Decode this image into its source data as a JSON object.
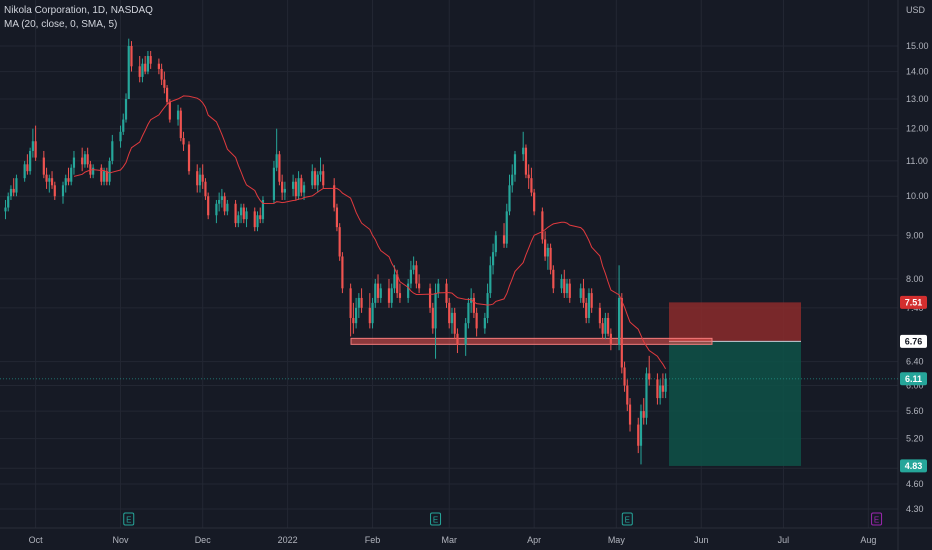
{
  "legend": {
    "title": "Nikola Corporation, 1D, NASDAQ",
    "indicator": "MA (20, close, 0, SMA, 5)"
  },
  "currency": "USD",
  "colors": {
    "background": "#161a25",
    "up": "#26a69a",
    "down": "#ef5350",
    "ma": "#e03a3e",
    "grid": "#232733",
    "stop_zone": "#8b2b2b",
    "target_zone": "#0e5248",
    "earnings": "#26a69a",
    "earnings_future": "#9c27b0"
  },
  "chart_data": {
    "type": "candlestick",
    "y_axis": {
      "scale": "log",
      "ticks": [
        "15.00",
        "14.00",
        "13.00",
        "12.00",
        "11.00",
        "10.00",
        "9.00",
        "8.00",
        "7.40",
        "6.40",
        "6.00",
        "5.60",
        "5.20",
        "4.80",
        "4.60",
        "4.30"
      ]
    },
    "x_axis": {
      "start": "2021-09-18",
      "end": "2022-08-10",
      "ticks": [
        {
          "label": "Oct",
          "date": "2021-10-01"
        },
        {
          "label": "Nov",
          "date": "2021-11-01"
        },
        {
          "label": "Dec",
          "date": "2021-12-01"
        },
        {
          "label": "2022",
          "date": "2022-01-01"
        },
        {
          "label": "Feb",
          "date": "2022-02-01"
        },
        {
          "label": "Mar",
          "date": "2022-03-01"
        },
        {
          "label": "Apr",
          "date": "2022-04-01"
        },
        {
          "label": "May",
          "date": "2022-05-01"
        },
        {
          "label": "Jun",
          "date": "2022-06-01"
        },
        {
          "label": "Jul",
          "date": "2022-07-01"
        },
        {
          "label": "Aug",
          "date": "2022-08-01"
        }
      ]
    },
    "candles": [
      [
        "2021-09-20",
        9.6,
        9.9,
        9.4,
        9.7
      ],
      [
        "2021-09-21",
        9.7,
        10.1,
        9.6,
        10.0
      ],
      [
        "2021-09-22",
        10.0,
        10.3,
        9.9,
        10.2
      ],
      [
        "2021-09-23",
        10.2,
        10.5,
        10.0,
        10.1
      ],
      [
        "2021-09-24",
        10.1,
        10.6,
        10.0,
        10.5
      ],
      [
        "2021-09-27",
        10.5,
        11.0,
        10.4,
        10.9
      ],
      [
        "2021-09-28",
        10.9,
        11.2,
        10.6,
        10.7
      ],
      [
        "2021-09-29",
        10.7,
        11.4,
        10.6,
        11.3
      ],
      [
        "2021-09-30",
        11.3,
        12.0,
        11.1,
        11.6
      ],
      [
        "2021-10-01",
        11.6,
        12.1,
        11.0,
        11.1
      ],
      [
        "2021-10-04",
        11.1,
        11.3,
        10.5,
        10.6
      ],
      [
        "2021-10-05",
        10.6,
        10.8,
        10.2,
        10.4
      ],
      [
        "2021-10-06",
        10.4,
        10.6,
        10.1,
        10.5
      ],
      [
        "2021-10-07",
        10.5,
        10.7,
        10.2,
        10.3
      ],
      [
        "2021-10-08",
        10.3,
        10.4,
        9.9,
        10.0
      ],
      [
        "2021-10-11",
        10.0,
        10.4,
        9.8,
        10.3
      ],
      [
        "2021-10-12",
        10.3,
        10.6,
        10.1,
        10.5
      ],
      [
        "2021-10-13",
        10.5,
        10.8,
        10.3,
        10.4
      ],
      [
        "2021-10-14",
        10.4,
        10.9,
        10.3,
        10.8
      ],
      [
        "2021-10-15",
        10.8,
        11.3,
        10.6,
        11.1
      ],
      [
        "2021-10-18",
        11.1,
        11.4,
        10.7,
        10.9
      ],
      [
        "2021-10-19",
        10.9,
        11.3,
        10.8,
        11.2
      ],
      [
        "2021-10-20",
        11.2,
        11.4,
        10.8,
        10.9
      ],
      [
        "2021-10-21",
        10.9,
        11.0,
        10.5,
        10.6
      ],
      [
        "2021-10-22",
        10.6,
        10.9,
        10.5,
        10.8
      ],
      [
        "2021-10-25",
        10.8,
        10.9,
        10.3,
        10.4
      ],
      [
        "2021-10-26",
        10.4,
        10.8,
        10.3,
        10.7
      ],
      [
        "2021-10-27",
        10.7,
        10.8,
        10.3,
        10.4
      ],
      [
        "2021-10-28",
        10.4,
        11.1,
        10.3,
        11.0
      ],
      [
        "2021-10-29",
        11.0,
        11.8,
        10.9,
        11.6
      ],
      [
        "2021-11-01",
        11.6,
        12.1,
        11.4,
        11.9
      ],
      [
        "2021-11-02",
        11.9,
        12.5,
        11.8,
        12.3
      ],
      [
        "2021-11-03",
        12.3,
        13.2,
        12.2,
        13.0
      ],
      [
        "2021-11-04",
        13.0,
        15.3,
        13.0,
        15.0
      ],
      [
        "2021-11-05",
        15.0,
        15.2,
        14.0,
        14.2
      ],
      [
        "2021-11-08",
        14.2,
        14.6,
        13.6,
        13.8
      ],
      [
        "2021-11-09",
        13.8,
        14.5,
        13.6,
        14.3
      ],
      [
        "2021-11-10",
        14.3,
        14.6,
        13.9,
        14.0
      ],
      [
        "2021-11-11",
        14.0,
        14.8,
        13.9,
        14.6
      ],
      [
        "2021-11-12",
        14.6,
        14.8,
        14.1,
        14.3
      ],
      [
        "2021-11-15",
        14.3,
        14.5,
        13.9,
        14.1
      ],
      [
        "2021-11-16",
        14.1,
        14.3,
        13.5,
        13.7
      ],
      [
        "2021-11-17",
        13.7,
        14.0,
        13.2,
        13.4
      ],
      [
        "2021-11-18",
        13.4,
        13.5,
        12.8,
        12.9
      ],
      [
        "2021-11-19",
        12.9,
        13.0,
        12.2,
        12.3
      ],
      [
        "2021-11-22",
        12.3,
        12.8,
        12.1,
        12.6
      ],
      [
        "2021-11-23",
        12.6,
        12.7,
        11.6,
        11.7
      ],
      [
        "2021-11-24",
        11.7,
        11.9,
        11.3,
        11.5
      ],
      [
        "2021-11-26",
        11.5,
        11.6,
        10.6,
        10.7
      ],
      [
        "2021-11-29",
        10.7,
        10.9,
        10.1,
        10.3
      ],
      [
        "2021-11-30",
        10.3,
        10.8,
        10.1,
        10.6
      ],
      [
        "2021-12-01",
        10.6,
        10.9,
        10.2,
        10.4
      ],
      [
        "2021-12-02",
        10.4,
        10.5,
        9.9,
        10.0
      ],
      [
        "2021-12-03",
        10.0,
        10.1,
        9.4,
        9.5
      ],
      [
        "2021-12-06",
        9.5,
        9.9,
        9.3,
        9.8
      ],
      [
        "2021-12-07",
        9.8,
        10.1,
        9.6,
        9.9
      ],
      [
        "2021-12-08",
        9.9,
        10.2,
        9.7,
        10.0
      ],
      [
        "2021-12-09",
        10.0,
        10.1,
        9.5,
        9.6
      ],
      [
        "2021-12-10",
        9.6,
        9.9,
        9.5,
        9.8
      ],
      [
        "2021-12-13",
        9.8,
        9.9,
        9.2,
        9.3
      ],
      [
        "2021-12-14",
        9.3,
        9.6,
        9.2,
        9.5
      ],
      [
        "2021-12-15",
        9.5,
        9.8,
        9.3,
        9.7
      ],
      [
        "2021-12-16",
        9.7,
        9.8,
        9.3,
        9.4
      ],
      [
        "2021-12-17",
        9.4,
        9.7,
        9.2,
        9.6
      ],
      [
        "2021-12-20",
        9.6,
        9.7,
        9.1,
        9.2
      ],
      [
        "2021-12-21",
        9.2,
        9.6,
        9.1,
        9.5
      ],
      [
        "2021-12-22",
        9.5,
        9.7,
        9.3,
        9.4
      ],
      [
        "2021-12-23",
        9.4,
        10.0,
        9.3,
        9.9
      ],
      [
        "2021-12-27",
        9.9,
        11.0,
        9.8,
        10.8
      ],
      [
        "2021-12-28",
        10.8,
        12.0,
        10.7,
        11.2
      ],
      [
        "2021-12-29",
        11.2,
        11.3,
        10.3,
        10.4
      ],
      [
        "2021-12-30",
        10.4,
        10.6,
        9.9,
        10.1
      ],
      [
        "2021-12-31",
        10.1,
        10.4,
        9.9,
        10.2
      ],
      [
        "2022-01-03",
        10.2,
        10.6,
        10.0,
        10.4
      ],
      [
        "2022-01-04",
        10.4,
        10.5,
        9.9,
        10.0
      ],
      [
        "2022-01-05",
        10.0,
        10.7,
        9.9,
        10.5
      ],
      [
        "2022-01-06",
        10.5,
        10.6,
        10.0,
        10.1
      ],
      [
        "2022-01-07",
        10.1,
        10.4,
        9.9,
        10.3
      ],
      [
        "2022-01-10",
        10.3,
        10.9,
        10.2,
        10.7
      ],
      [
        "2022-01-11",
        10.7,
        10.8,
        10.2,
        10.3
      ],
      [
        "2022-01-12",
        10.3,
        10.7,
        10.1,
        10.6
      ],
      [
        "2022-01-13",
        10.6,
        11.1,
        10.4,
        10.7
      ],
      [
        "2022-01-14",
        10.7,
        10.9,
        10.2,
        10.3
      ],
      [
        "2022-01-18",
        10.3,
        10.5,
        9.6,
        9.7
      ],
      [
        "2022-01-19",
        9.7,
        9.8,
        9.1,
        9.2
      ],
      [
        "2022-01-20",
        9.2,
        9.3,
        8.4,
        8.5
      ],
      [
        "2022-01-21",
        8.5,
        8.6,
        7.7,
        7.8
      ],
      [
        "2022-01-24",
        7.8,
        7.9,
        6.85,
        7.2
      ],
      [
        "2022-01-25",
        7.2,
        7.5,
        6.9,
        7.1
      ],
      [
        "2022-01-26",
        7.1,
        7.6,
        7.0,
        7.4
      ],
      [
        "2022-01-27",
        7.4,
        7.7,
        7.2,
        7.6
      ],
      [
        "2022-01-28",
        7.6,
        7.8,
        7.3,
        7.4
      ],
      [
        "2022-01-31",
        7.4,
        7.7,
        7.0,
        7.1
      ],
      [
        "2022-02-01",
        7.1,
        7.6,
        7.0,
        7.5
      ],
      [
        "2022-02-02",
        7.5,
        8.0,
        7.4,
        7.9
      ],
      [
        "2022-02-03",
        7.9,
        8.1,
        7.5,
        7.6
      ],
      [
        "2022-02-04",
        7.6,
        7.9,
        7.5,
        7.8
      ],
      [
        "2022-02-07",
        7.8,
        8.0,
        7.4,
        7.5
      ],
      [
        "2022-02-08",
        7.5,
        7.9,
        7.4,
        7.8
      ],
      [
        "2022-02-09",
        7.8,
        8.3,
        7.7,
        8.1
      ],
      [
        "2022-02-10",
        8.1,
        8.2,
        7.6,
        7.7
      ],
      [
        "2022-02-11",
        7.7,
        7.9,
        7.5,
        7.6
      ],
      [
        "2022-02-14",
        7.6,
        8.0,
        7.5,
        7.9
      ],
      [
        "2022-02-15",
        7.9,
        8.4,
        7.8,
        8.2
      ],
      [
        "2022-02-16",
        8.2,
        8.5,
        8.1,
        8.3
      ],
      [
        "2022-02-17",
        8.3,
        8.4,
        7.8,
        7.9
      ],
      [
        "2022-02-18",
        7.9,
        8.1,
        7.7,
        7.8
      ],
      [
        "2022-02-22",
        7.8,
        7.9,
        7.3,
        7.4
      ],
      [
        "2022-02-23",
        7.4,
        7.5,
        6.9,
        7.0
      ],
      [
        "2022-02-24",
        7.0,
        7.9,
        6.45,
        7.7
      ],
      [
        "2022-02-25",
        7.7,
        8.0,
        7.6,
        7.9
      ],
      [
        "2022-02-28",
        7.9,
        8.0,
        7.4,
        7.5
      ],
      [
        "2022-03-01",
        7.5,
        7.6,
        7.0,
        7.1
      ],
      [
        "2022-03-02",
        7.1,
        7.4,
        6.9,
        7.3
      ],
      [
        "2022-03-03",
        7.3,
        7.4,
        6.8,
        6.9
      ],
      [
        "2022-03-04",
        6.9,
        7.0,
        6.55,
        6.7
      ],
      [
        "2022-03-07",
        6.7,
        7.2,
        6.5,
        7.1
      ],
      [
        "2022-03-08",
        7.1,
        7.6,
        7.0,
        7.5
      ],
      [
        "2022-03-09",
        7.5,
        7.8,
        7.3,
        7.6
      ],
      [
        "2022-03-10",
        7.6,
        7.7,
        7.2,
        7.3
      ],
      [
        "2022-03-11",
        7.3,
        7.4,
        6.85,
        7.0
      ],
      [
        "2022-03-14",
        7.0,
        7.3,
        6.9,
        7.2
      ],
      [
        "2022-03-15",
        7.2,
        7.9,
        7.1,
        7.7
      ],
      [
        "2022-03-16",
        7.7,
        8.5,
        7.6,
        8.3
      ],
      [
        "2022-03-17",
        8.3,
        8.8,
        8.1,
        8.6
      ],
      [
        "2022-03-18",
        8.6,
        9.1,
        8.5,
        9.0
      ],
      [
        "2022-03-21",
        9.0,
        9.3,
        8.7,
        8.8
      ],
      [
        "2022-03-22",
        8.8,
        9.8,
        8.7,
        9.6
      ],
      [
        "2022-03-23",
        9.6,
        10.6,
        9.5,
        10.3
      ],
      [
        "2022-03-24",
        10.3,
        10.9,
        10.1,
        10.6
      ],
      [
        "2022-03-25",
        10.6,
        11.3,
        10.4,
        11.2
      ],
      [
        "2022-03-28",
        11.2,
        11.9,
        11.0,
        11.4
      ],
      [
        "2022-03-29",
        11.4,
        11.5,
        10.5,
        10.6
      ],
      [
        "2022-03-30",
        10.6,
        10.9,
        10.2,
        10.5
      ],
      [
        "2022-03-31",
        10.5,
        10.8,
        10.0,
        10.1
      ],
      [
        "2022-04-01",
        10.1,
        10.2,
        9.5,
        9.6
      ],
      [
        "2022-04-04",
        9.6,
        9.7,
        8.8,
        8.9
      ],
      [
        "2022-04-05",
        8.9,
        9.1,
        8.4,
        8.5
      ],
      [
        "2022-04-06",
        8.5,
        8.8,
        8.2,
        8.7
      ],
      [
        "2022-04-07",
        8.7,
        8.8,
        8.1,
        8.2
      ],
      [
        "2022-04-08",
        8.2,
        8.3,
        7.7,
        7.8
      ],
      [
        "2022-04-11",
        7.8,
        8.1,
        7.7,
        8.0
      ],
      [
        "2022-04-12",
        8.0,
        8.2,
        7.6,
        7.7
      ],
      [
        "2022-04-13",
        7.7,
        8.0,
        7.6,
        7.9
      ],
      [
        "2022-04-14",
        7.9,
        8.0,
        7.5,
        7.6
      ],
      [
        "2022-04-18",
        7.6,
        7.9,
        7.5,
        7.8
      ],
      [
        "2022-04-19",
        7.8,
        8.0,
        7.4,
        7.5
      ],
      [
        "2022-04-20",
        7.5,
        7.6,
        7.1,
        7.2
      ],
      [
        "2022-04-21",
        7.2,
        7.8,
        7.1,
        7.7
      ],
      [
        "2022-04-22",
        7.7,
        7.8,
        7.3,
        7.4
      ],
      [
        "2022-04-25",
        7.4,
        7.5,
        7.0,
        7.1
      ],
      [
        "2022-04-26",
        7.1,
        7.2,
        6.8,
        6.9
      ],
      [
        "2022-04-27",
        6.9,
        7.3,
        6.8,
        7.2
      ],
      [
        "2022-04-28",
        7.2,
        7.3,
        6.85,
        6.9
      ],
      [
        "2022-04-29",
        6.9,
        7.0,
        6.6,
        6.7
      ],
      [
        "2022-05-02",
        6.7,
        8.3,
        6.6,
        7.6
      ],
      [
        "2022-05-03",
        7.6,
        7.7,
        6.2,
        6.3
      ],
      [
        "2022-05-04",
        6.3,
        6.4,
        5.9,
        6.0
      ],
      [
        "2022-05-05",
        6.0,
        6.1,
        5.6,
        5.7
      ],
      [
        "2022-05-06",
        5.7,
        5.8,
        5.3,
        5.4
      ],
      [
        "2022-05-09",
        5.4,
        5.5,
        5.0,
        5.1
      ],
      [
        "2022-05-10",
        5.1,
        5.7,
        4.85,
        5.6
      ],
      [
        "2022-05-11",
        5.6,
        5.8,
        5.4,
        5.5
      ],
      [
        "2022-05-12",
        5.5,
        6.3,
        5.4,
        6.2
      ],
      [
        "2022-05-13",
        6.2,
        6.5,
        6.0,
        6.1
      ],
      [
        "2022-05-16",
        6.1,
        6.2,
        5.7,
        5.8
      ],
      [
        "2022-05-17",
        5.8,
        6.1,
        5.7,
        6.0
      ],
      [
        "2022-05-18",
        6.0,
        6.2,
        5.8,
        5.9
      ],
      [
        "2022-05-19",
        5.9,
        6.2,
        5.8,
        6.11
      ]
    ],
    "ma_period": 20,
    "horizontal_level": 6.76,
    "position": {
      "entry": 6.76,
      "stop": 7.51,
      "target": 4.83
    },
    "current_price": 6.11,
    "price_tags": [
      "7.51",
      "6.76",
      "6.11",
      "4.83"
    ],
    "earnings_markers": [
      {
        "date": "2021-11-04",
        "label": "E",
        "future": false
      },
      {
        "date": "2022-02-24",
        "label": "E",
        "future": false
      },
      {
        "date": "2022-05-05",
        "label": "E",
        "future": false
      },
      {
        "date": "2022-08-04",
        "label": "E",
        "future": true
      }
    ]
  }
}
